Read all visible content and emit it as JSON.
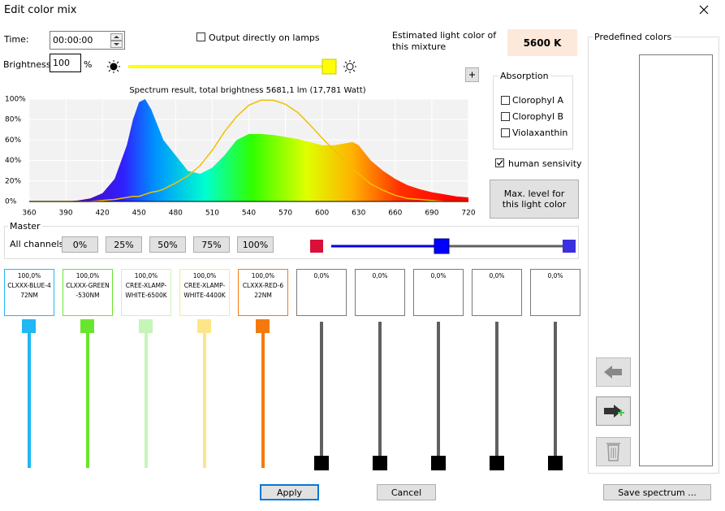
{
  "window": {
    "title": "Edit color mix"
  },
  "time": {
    "label": "Time:",
    "value": "00:00:00"
  },
  "brightness": {
    "label": "Brightness:",
    "value": "100",
    "unit": "%"
  },
  "output_checkbox": "Output directly on lamps",
  "estimate": {
    "label": "Estimated light color of this mixture",
    "value": "5600 K"
  },
  "spectrum": {
    "title": "Spectrum result, total brightness 5681,1 lm (17,781 Watt)",
    "xlim": [
      360,
      720
    ],
    "ylim": [
      0,
      100
    ],
    "xticks": [
      360,
      390,
      420,
      450,
      480,
      510,
      540,
      570,
      600,
      630,
      660,
      690,
      720
    ],
    "yticks": [
      {
        "value": 0,
        "label": "0%"
      },
      {
        "value": 20,
        "label": "20%"
      },
      {
        "value": 40,
        "label": "40%"
      },
      {
        "value": 60,
        "label": "60%"
      },
      {
        "value": 80,
        "label": "80%"
      },
      {
        "value": 100,
        "label": "100%"
      }
    ],
    "x": [
      360,
      390,
      400,
      410,
      420,
      430,
      440,
      445,
      450,
      455,
      460,
      465,
      470,
      480,
      490,
      500,
      510,
      520,
      530,
      540,
      550,
      560,
      570,
      580,
      590,
      600,
      610,
      620,
      625,
      630,
      640,
      650,
      660,
      670,
      680,
      690,
      700,
      710,
      720
    ],
    "values": [
      0,
      0,
      1,
      3,
      8,
      22,
      55,
      80,
      97,
      100,
      90,
      75,
      60,
      45,
      30,
      27,
      33,
      45,
      60,
      66,
      66,
      65,
      63,
      61,
      58,
      55,
      55,
      57,
      58,
      55,
      40,
      30,
      22,
      16,
      12,
      9,
      7,
      5,
      4
    ],
    "sensitivity": [
      0,
      0,
      0,
      0,
      1,
      2,
      4,
      5,
      5,
      7,
      9,
      10,
      12,
      18,
      25,
      35,
      50,
      68,
      83,
      94,
      99,
      99,
      95,
      87,
      75,
      62,
      50,
      38,
      32,
      27,
      17,
      11,
      6,
      3,
      2,
      1,
      0,
      0,
      0
    ]
  },
  "absorption": {
    "title": "Absorption",
    "options": [
      "Clorophyl A",
      "Clorophyl B",
      "Violaxanthin"
    ]
  },
  "human_sensitivity": "human sensivity",
  "max_level_button": "Max. level for this light color",
  "master": {
    "title": "Master",
    "label": "All channels",
    "buttons": [
      "0%",
      "25%",
      "50%",
      "75%",
      "100%"
    ]
  },
  "channels": [
    {
      "value": "100,0%",
      "name": "CLXXX-BLUE-472NM",
      "color": "#1fb8f2"
    },
    {
      "value": "100,0%",
      "name": "CLXXX-GREEN-530NM",
      "color": "#6ae52f"
    },
    {
      "value": "100,0%",
      "name": "CREE-XLAMP-WHITE-6500K",
      "color": "#c6f5b8"
    },
    {
      "value": "100,0%",
      "name": "CREE-XLAMP-WHITE-4400K",
      "color": "#fde68a"
    },
    {
      "value": "100,0%",
      "name": "CLXXX-RED-622NM",
      "color": "#f47a10"
    },
    {
      "value": "0,0%"
    },
    {
      "value": "0,0%"
    },
    {
      "value": "0,0%"
    },
    {
      "value": "0,0%"
    },
    {
      "value": "0,0%"
    }
  ],
  "predefined": {
    "title": "Predefined colors"
  },
  "buttons": {
    "apply": "Apply",
    "cancel": "Cancel",
    "save": "Save spectrum ..."
  }
}
